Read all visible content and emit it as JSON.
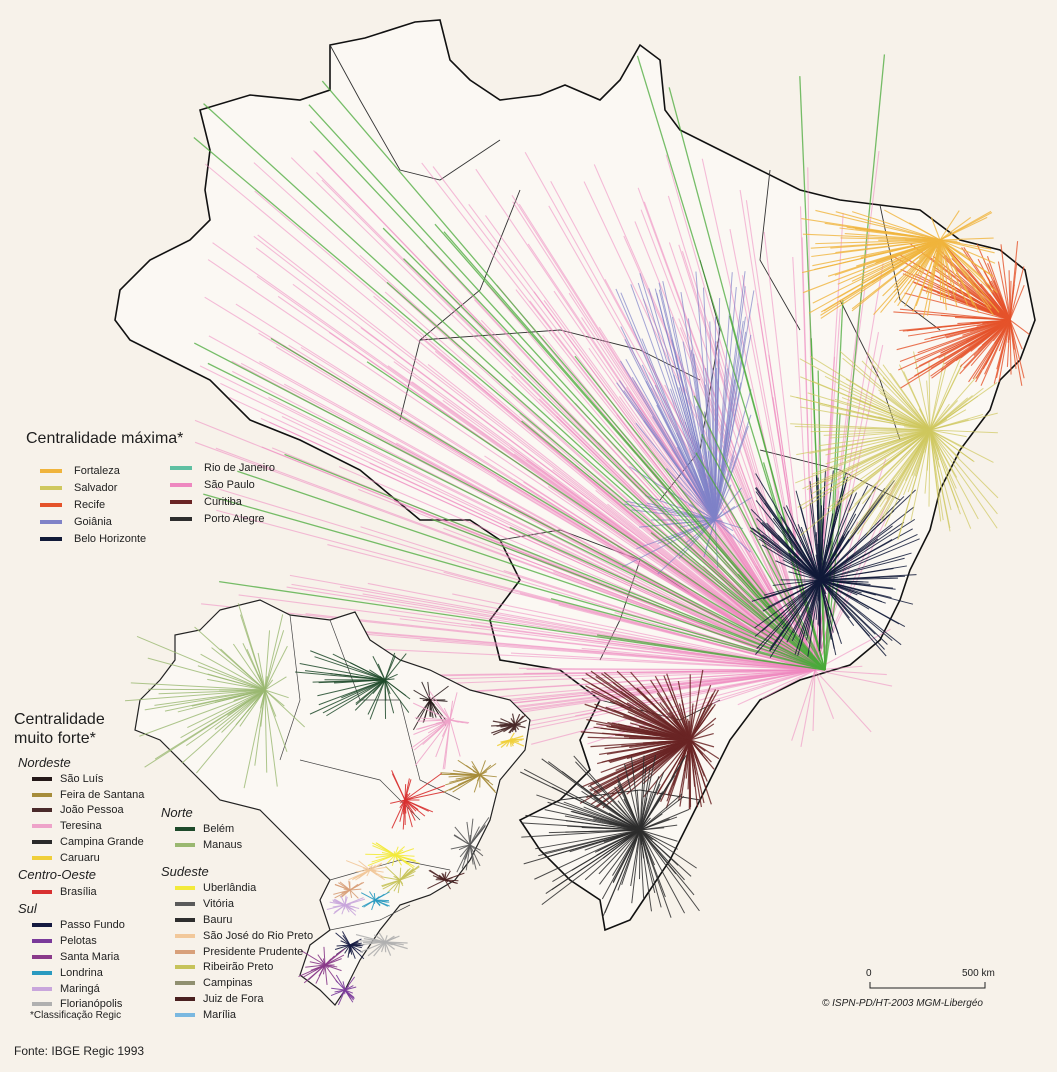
{
  "legend_max": {
    "title": "Centralidade máxima*",
    "col1": [
      {
        "label": "Fortaleza",
        "color": "#f0b43c"
      },
      {
        "label": "Salvador",
        "color": "#cfc85e"
      },
      {
        "label": "Recife",
        "color": "#e5532a"
      },
      {
        "label": "Goiânia",
        "color": "#7f82c7"
      },
      {
        "label": "Belo Horizonte",
        "color": "#111a38"
      }
    ],
    "col2": [
      {
        "label": "Rio de Janeiro",
        "color": "#5fc0a2"
      },
      {
        "label": "São Paulo",
        "color": "#ee88c0"
      },
      {
        "label": "Curitiba",
        "color": "#6a2424"
      },
      {
        "label": "Porto Alegre",
        "color": "#2d2d2d"
      }
    ]
  },
  "legend_strong": {
    "title_line1": "Centralidade",
    "title_line2": "muito forte*",
    "groups": [
      {
        "name": "Nordeste",
        "items": [
          {
            "label": "São Luís",
            "color": "#241818"
          },
          {
            "label": "Feira de Santana",
            "color": "#a68c3a"
          },
          {
            "label": "João Pessoa",
            "color": "#4a2a2a"
          },
          {
            "label": "Teresina",
            "color": "#eea3c9"
          },
          {
            "label": "Campina Grande",
            "color": "#2a2a2a"
          },
          {
            "label": "Caruaru",
            "color": "#f0cf3a"
          }
        ]
      },
      {
        "name": "Centro-Oeste",
        "items": [
          {
            "label": "Brasília",
            "color": "#d83030"
          }
        ]
      },
      {
        "name": "Sul",
        "items": [
          {
            "label": "Passo Fundo",
            "color": "#151a40"
          },
          {
            "label": "Pelotas",
            "color": "#7a3a9a"
          },
          {
            "label": "Santa Maria",
            "color": "#8a3a8a"
          },
          {
            "label": "Londrina",
            "color": "#2a9ac0"
          },
          {
            "label": "Maringá",
            "color": "#c9a6dc"
          },
          {
            "label": "Florianópolis",
            "color": "#b0b0b0"
          }
        ]
      },
      {
        "name": "Norte",
        "items": [
          {
            "label": "Belém",
            "color": "#1e4a2a"
          },
          {
            "label": "Manaus",
            "color": "#9ab870"
          }
        ]
      },
      {
        "name": "Sudeste",
        "items": [
          {
            "label": "Uberlândia",
            "color": "#f3ea3a"
          },
          {
            "label": "Vitória",
            "color": "#5a5a5a"
          },
          {
            "label": "Bauru",
            "color": "#2e2e2e"
          },
          {
            "label": "São José do Rio Preto",
            "color": "#f2c89a"
          },
          {
            "label": "Presidente Prudente",
            "color": "#d8a07a"
          },
          {
            "label": "Ribeirão Preto",
            "color": "#c6c35a"
          },
          {
            "label": "Campinas",
            "color": "#909070"
          },
          {
            "label": "Juiz de Fora",
            "color": "#4a2020"
          },
          {
            "label": "Marília",
            "color": "#7ab8e0"
          }
        ]
      }
    ]
  },
  "footnote": "*Classificação Regic",
  "source": "Fonte: IBGE Regic 1993",
  "scale": {
    "zero": "0",
    "max": "500 km"
  },
  "credit": "© ISPN-PD/HT-2003 MGM-Libergéo"
}
